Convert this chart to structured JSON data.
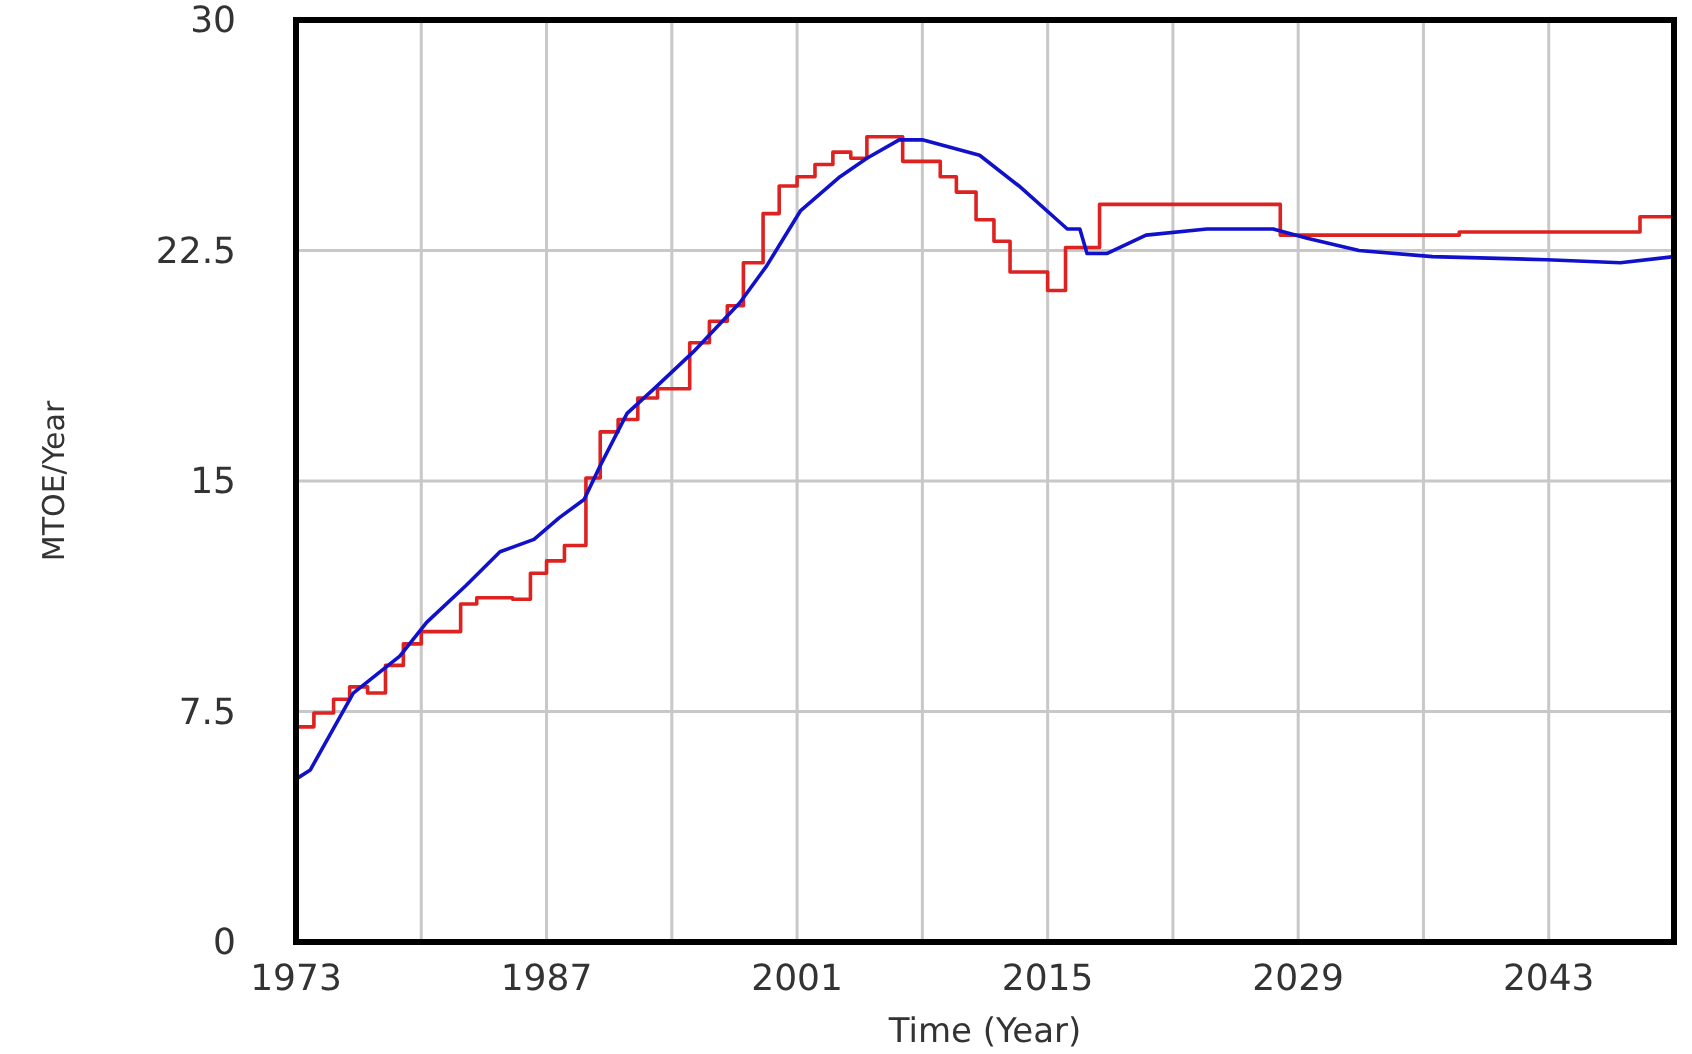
{
  "chart_data": {
    "type": "line",
    "xlabel": "Time (Year)",
    "ylabel": "MTOE/Year",
    "xlim": [
      1973,
      2050
    ],
    "ylim": [
      0,
      30
    ],
    "xticks": [
      1973,
      {
        "value": 1980,
        "label": null
      },
      1987,
      {
        "value": 1994,
        "label": null
      },
      2001,
      {
        "value": 2008,
        "label": null
      },
      2015,
      {
        "value": 2022,
        "label": null
      },
      2029,
      {
        "value": 2036,
        "label": null
      },
      2043,
      {
        "value": 2050,
        "label": null
      }
    ],
    "yticks": [
      0,
      7.5,
      15,
      22.5,
      30
    ],
    "grid": true,
    "marker": "none",
    "line_style": "solid",
    "series": [
      {
        "type": "step",
        "color": "#dd2222",
        "x": [
          1973,
          1974,
          1975.1,
          1976,
          1977,
          1978,
          1979,
          1980,
          1982.2,
          1983.1,
          1985.1,
          1986.1,
          1987,
          1988,
          1989.2,
          1990,
          1991,
          1992.1,
          1993.2,
          1995,
          1996.1,
          1997.1,
          1998,
          1999.1,
          2000,
          2001,
          2002,
          2003,
          2004,
          2004.9,
          2006.9,
          2009,
          2009.9,
          2011,
          2012,
          2012.9,
          2015,
          2016,
          2017.9,
          2028,
          2038,
          2048.1,
          2050
        ],
        "values": [
          7.0,
          7.45,
          7.9,
          8.3,
          8.1,
          9.0,
          9.7,
          10.1,
          11.0,
          11.2,
          11.15,
          12.0,
          12.4,
          12.9,
          15.1,
          16.6,
          17.0,
          17.7,
          18.0,
          19.5,
          20.2,
          20.7,
          22.1,
          23.7,
          24.6,
          24.9,
          25.3,
          25.7,
          25.5,
          26.2,
          25.4,
          24.9,
          24.4,
          23.5,
          22.8,
          21.8,
          21.2,
          22.6,
          24.0,
          23.0,
          23.1,
          23.6,
          23.6
        ]
      },
      {
        "color": "#1111cc",
        "x": [
          1973,
          1973.8,
          1976.2,
          1978.8,
          1980.3,
          1982.5,
          1984.4,
          1986.3,
          1987.7,
          1989.1,
          1990,
          1991.5,
          1993,
          1995.2,
          1997.8,
          1999.3,
          2001.2,
          2003.4,
          2004.9,
          2006.7,
          2008,
          2011.2,
          2013.4,
          2016.1,
          2016.8,
          2017.2,
          2018.3,
          2020.5,
          2023.9,
          2027.6,
          2029.5,
          2032.4,
          2036.5,
          2042.9,
          2047,
          2050
        ],
        "values": [
          5.3,
          5.6,
          8.1,
          9.3,
          10.4,
          11.6,
          12.7,
          13.1,
          13.8,
          14.4,
          15.5,
          17.2,
          18.0,
          19.2,
          20.8,
          22.0,
          23.8,
          24.9,
          25.5,
          26.1,
          26.1,
          25.6,
          24.6,
          23.2,
          23.2,
          22.4,
          22.4,
          23.0,
          23.2,
          23.2,
          22.9,
          22.5,
          22.3,
          22.2,
          22.1,
          22.3
        ]
      }
    ]
  }
}
